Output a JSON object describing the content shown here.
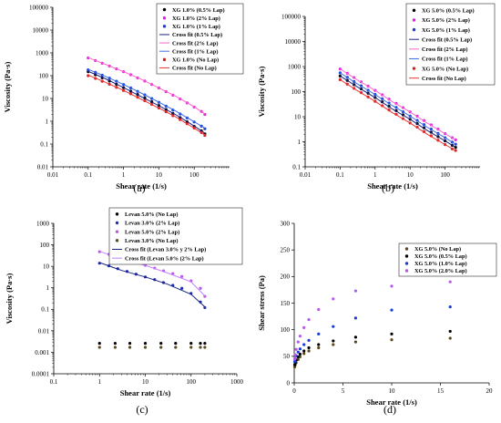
{
  "colors": {
    "black": "#000000",
    "magenta": "#e020e0",
    "blue": "#1a3cd6",
    "red": "#d42020",
    "navy": "#1a237e",
    "pink": "#ff66cc",
    "lightblue": "#3a6ee8",
    "salmon": "#ee3333",
    "darkblue": "#1f2fb0",
    "violet": "#b45ae6",
    "olive": "#5a4a1e",
    "yellowish": "#b8a23c"
  },
  "chart_data": [
    {
      "id": "a",
      "panel_label": "(a)",
      "type": "scatter",
      "scale": "log-log",
      "xlabel": "Shear rate (1/s)",
      "ylabel": "Viscosity (Pa·s)",
      "xlim": [
        0.01,
        1000
      ],
      "ylim": [
        0.01,
        100000
      ],
      "x_ticks": [
        "0.01",
        "0.1",
        "1",
        "10",
        "100"
      ],
      "y_ticks": [
        "0.01",
        "0.1",
        "1",
        "10",
        "100",
        "1000",
        "10000",
        "100000"
      ],
      "legend_position": "top-right",
      "series": [
        {
          "name": "XG 1.0% (0.5% Lap)",
          "kind": "points",
          "marker": "circle",
          "color": "#000000",
          "x": [
            0.1,
            0.16,
            0.25,
            0.4,
            0.63,
            1,
            1.6,
            2.5,
            4,
            6.3,
            10,
            16,
            25,
            40,
            63,
            100,
            160,
            200
          ],
          "y": [
            150,
            110,
            80,
            58,
            42,
            30,
            21,
            15,
            10.5,
            7.2,
            4.9,
            3.3,
            2.2,
            1.45,
            0.95,
            0.6,
            0.38,
            0.28
          ]
        },
        {
          "name": "XG 1.0% (2% Lap)",
          "kind": "points",
          "marker": "circle",
          "color": "#e020e0",
          "x": [
            0.1,
            0.16,
            0.25,
            0.4,
            0.63,
            1,
            1.6,
            2.5,
            4,
            6.3,
            10,
            16,
            25,
            40,
            63,
            100,
            160,
            200
          ],
          "y": [
            600,
            460,
            350,
            265,
            200,
            150,
            110,
            80,
            58,
            41,
            29,
            20,
            14,
            9.5,
            6.4,
            4.2,
            2.7,
            2.0
          ]
        },
        {
          "name": "XG 1.0% (1% Lap)",
          "kind": "points",
          "marker": "circle",
          "color": "#1a3cd6",
          "x": [
            0.1,
            0.16,
            0.25,
            0.4,
            0.63,
            1,
            1.6,
            2.5,
            4,
            6.3,
            10,
            16,
            25,
            40,
            63,
            100,
            160,
            200
          ],
          "y": [
            180,
            140,
            105,
            78,
            57,
            41,
            29,
            20.5,
            14.3,
            9.9,
            6.8,
            4.6,
            3.1,
            2.1,
            1.4,
            0.93,
            0.61,
            0.47
          ]
        },
        {
          "name": "Cross fit (0.5% Lap)",
          "kind": "line",
          "color": "#1a237e",
          "x": [
            0.1,
            0.3,
            1,
            3,
            10,
            30,
            100,
            200
          ],
          "y": [
            155,
            75,
            30,
            12.5,
            4.8,
            1.95,
            0.62,
            0.3
          ]
        },
        {
          "name": "Cross fit (2% Lap)",
          "kind": "line",
          "color": "#ff66cc",
          "x": [
            0.1,
            0.3,
            1,
            3,
            10,
            30,
            100,
            200
          ],
          "y": [
            620,
            320,
            150,
            72,
            29,
            12.5,
            4.3,
            2.1
          ]
        },
        {
          "name": "Cross fit (1% Lap)",
          "kind": "line",
          "color": "#3a6ee8",
          "x": [
            0.1,
            0.3,
            1,
            3,
            10,
            30,
            100,
            200
          ],
          "y": [
            190,
            95,
            41,
            18,
            6.9,
            2.8,
            0.95,
            0.5
          ]
        },
        {
          "name": "XG 1.0% (No Lap)",
          "kind": "points",
          "marker": "circle",
          "color": "#d42020",
          "x": [
            0.1,
            0.16,
            0.25,
            0.4,
            0.63,
            1,
            1.6,
            2.5,
            4,
            6.3,
            10,
            16,
            25,
            40,
            63,
            100,
            160,
            200
          ],
          "y": [
            100,
            76,
            57,
            42,
            31,
            22.5,
            16,
            11.3,
            7.9,
            5.5,
            3.8,
            2.6,
            1.75,
            1.18,
            0.78,
            0.5,
            0.32,
            0.24
          ]
        },
        {
          "name": "Cross fit (No Lap)",
          "kind": "line",
          "color": "#ee3333",
          "x": [
            0.1,
            0.3,
            1,
            3,
            10,
            30,
            100,
            200
          ],
          "y": [
            105,
            52,
            22.5,
            9.6,
            3.8,
            1.55,
            0.5,
            0.25
          ]
        }
      ]
    },
    {
      "id": "b",
      "panel_label": "(b)",
      "type": "scatter",
      "scale": "log-log",
      "xlabel": "Shear rate (1/s)",
      "ylabel": "Viscosity (Pa·s)",
      "xlim": [
        0.01,
        1000
      ],
      "ylim": [
        0.1,
        100000
      ],
      "x_ticks": [
        "0.01",
        "0.1",
        "1",
        "10",
        "100"
      ],
      "y_ticks": [
        "0.1",
        "1",
        "10",
        "100",
        "1000",
        "10000",
        "100000"
      ],
      "legend_position": "top-right",
      "series": [
        {
          "name": "XG 5.0% (0.5% Lap)",
          "kind": "points",
          "marker": "circle",
          "color": "#000000",
          "x": [
            0.1,
            0.16,
            0.25,
            0.4,
            0.63,
            1,
            1.6,
            2.5,
            4,
            6.3,
            10,
            16,
            25,
            40,
            63,
            100,
            160,
            200
          ],
          "y": [
            420,
            280,
            190,
            128,
            86,
            58,
            39,
            26,
            17.5,
            11.8,
            7.9,
            5.3,
            3.6,
            2.4,
            1.6,
            1.08,
            0.72,
            0.6
          ]
        },
        {
          "name": "XG 5.0% (2% Lap)",
          "kind": "points",
          "marker": "circle",
          "color": "#e020e0",
          "x": [
            0.1,
            0.16,
            0.25,
            0.4,
            0.63,
            1,
            1.6,
            2.5,
            4,
            6.3,
            10,
            16,
            25,
            40,
            63,
            100,
            160,
            200
          ],
          "y": [
            800,
            540,
            365,
            245,
            166,
            112,
            75,
            50,
            34,
            23,
            15.5,
            10.4,
            7,
            4.7,
            3.2,
            2.1,
            1.45,
            1.2
          ]
        },
        {
          "name": "XG 5.0% (1% Lap)",
          "kind": "points",
          "marker": "circle",
          "color": "#1a3cd6",
          "x": [
            0.1,
            0.16,
            0.25,
            0.4,
            0.63,
            1,
            1.6,
            2.5,
            4,
            6.3,
            10,
            16,
            25,
            40,
            63,
            100,
            160,
            200
          ],
          "y": [
            560,
            375,
            252,
            170,
            114,
            77,
            52,
            35,
            23.5,
            15.8,
            10.6,
            7.1,
            4.8,
            3.2,
            2.15,
            1.45,
            0.97,
            0.8
          ]
        },
        {
          "name": "Cross fit (0.5% Lap)",
          "kind": "line",
          "color": "#1a237e",
          "x": [
            0.1,
            0.3,
            1,
            3,
            10,
            30,
            100,
            200
          ],
          "y": [
            420,
            160,
            58,
            21,
            7.9,
            2.9,
            1.08,
            0.6
          ]
        },
        {
          "name": "Cross fit (2% Lap)",
          "kind": "line",
          "color": "#ff66cc",
          "x": [
            0.1,
            0.3,
            1,
            3,
            10,
            30,
            100,
            200
          ],
          "y": [
            800,
            300,
            112,
            41,
            15.5,
            5.7,
            2.1,
            1.2
          ]
        },
        {
          "name": "Cross fit (1% Lap)",
          "kind": "line",
          "color": "#3a6ee8",
          "x": [
            0.1,
            0.3,
            1,
            3,
            10,
            30,
            100,
            200
          ],
          "y": [
            560,
            210,
            77,
            28.5,
            10.6,
            3.9,
            1.45,
            0.8
          ]
        },
        {
          "name": "XG 5.0% (No Lap)",
          "kind": "points",
          "marker": "circle",
          "color": "#d42020",
          "x": [
            0.1,
            0.16,
            0.25,
            0.4,
            0.63,
            1,
            1.6,
            2.5,
            4,
            6.3,
            10,
            16,
            25,
            40,
            63,
            100,
            160,
            200
          ],
          "y": [
            300,
            200,
            135,
            91,
            61,
            41,
            27.5,
            18.5,
            12.5,
            8.4,
            5.6,
            3.8,
            2.55,
            1.72,
            1.15,
            0.77,
            0.52,
            0.45
          ]
        },
        {
          "name": "Cross fit (No Lap)",
          "kind": "line",
          "color": "#ee3333",
          "x": [
            0.1,
            0.3,
            1,
            3,
            10,
            30,
            100,
            200
          ],
          "y": [
            300,
            113,
            41,
            15,
            5.6,
            2.05,
            0.77,
            0.45
          ]
        }
      ]
    },
    {
      "id": "c",
      "panel_label": "(c)",
      "type": "scatter",
      "scale": "log-log",
      "xlabel": "Shear rate (1/s)",
      "ylabel": "Viscosity (Pa·s)",
      "xlim": [
        0.1,
        1000
      ],
      "ylim": [
        0.0001,
        1000
      ],
      "x_ticks": [
        "0.1",
        "1",
        "10",
        "100",
        "1000"
      ],
      "y_ticks": [
        "0.0001",
        "0.001",
        "0.01",
        "0.1",
        "1",
        "10",
        "100",
        "1000"
      ],
      "legend_position": "top-right",
      "series": [
        {
          "name": "Levan 5.0% (No Lap)",
          "kind": "points",
          "marker": "circle",
          "color": "#000000",
          "x": [
            1,
            2.2,
            4.6,
            10,
            22,
            46,
            100,
            160,
            200
          ],
          "y": [
            0.0026,
            0.0026,
            0.0026,
            0.0026,
            0.0026,
            0.0026,
            0.0026,
            0.0026,
            0.0026
          ]
        },
        {
          "name": "Levan 3.0% (2% Lap)",
          "kind": "points",
          "marker": "circle",
          "color": "#1f2fb0",
          "x": [
            1,
            1.6,
            2.5,
            4,
            6.3,
            10,
            16,
            25,
            40,
            63,
            100,
            160,
            200
          ],
          "y": [
            14,
            10.5,
            7.8,
            5.8,
            4.3,
            3.2,
            2.4,
            1.75,
            1.3,
            0.95,
            0.55,
            0.22,
            0.12
          ]
        },
        {
          "name": "Levan 5.0% (2% Lap)",
          "kind": "points",
          "marker": "circle",
          "color": "#b45ae6",
          "x": [
            1,
            1.6,
            2.5,
            4,
            6.3,
            10,
            16,
            25,
            40,
            63,
            100,
            160,
            200
          ],
          "y": [
            48,
            36,
            27,
            20,
            15,
            11.2,
            8.3,
            6.2,
            4.6,
            3.4,
            2.1,
            0.95,
            0.4
          ]
        },
        {
          "name": "Levan 3.0% (No Lap)",
          "kind": "points",
          "marker": "circle",
          "color": "#5a4a1e",
          "x": [
            1,
            2.2,
            4.6,
            10,
            22,
            46,
            100,
            160,
            200
          ],
          "y": [
            0.0017,
            0.0017,
            0.0017,
            0.0017,
            0.0017,
            0.0017,
            0.0017,
            0.0017,
            0.0017
          ]
        },
        {
          "name": "Cross fit (Levan 3.0% y 2% Lap)",
          "kind": "line",
          "color": "#1a237e",
          "x": [
            1,
            3,
            10,
            30,
            100,
            200
          ],
          "y": [
            15,
            6.5,
            3.2,
            1.5,
            0.5,
            0.13
          ]
        },
        {
          "name": "Cross fit (Levan 5.0% (2% Lap)",
          "kind": "line",
          "color": "#c080ff",
          "x": [
            1,
            3,
            10,
            30,
            100,
            200
          ],
          "y": [
            50,
            22,
            11,
            5,
            1.9,
            0.42
          ]
        }
      ]
    },
    {
      "id": "d",
      "panel_label": "(d)",
      "type": "scatter",
      "scale": "linear",
      "xlabel": "Shear rate (1/s)",
      "ylabel": "Shear stress (Pa)",
      "xlim": [
        0,
        20
      ],
      "ylim": [
        0,
        300
      ],
      "x_ticks": [
        "0",
        "5",
        "10",
        "15",
        "20"
      ],
      "y_ticks": [
        "0",
        "50",
        "100",
        "150",
        "200",
        "250",
        "300"
      ],
      "legend_position": "top-right",
      "series": [
        {
          "name": "XG 5.0% (No Lap)",
          "kind": "points",
          "marker": "circle",
          "color": "#5a4a1e",
          "x": [
            0.05,
            0.1,
            0.2,
            0.4,
            0.6,
            1.0,
            1.5,
            2.5,
            4,
            6.3,
            10,
            16
          ],
          "y": [
            30,
            34,
            38,
            44,
            49,
            55,
            60,
            66,
            72,
            77,
            81,
            84
          ]
        },
        {
          "name": "XG 5.0% (0.5% Lap)",
          "kind": "points",
          "marker": "circle",
          "color": "#000000",
          "x": [
            0.05,
            0.1,
            0.2,
            0.4,
            0.6,
            1.0,
            1.5,
            2.5,
            4,
            6.3,
            10,
            16
          ],
          "y": [
            34,
            38,
            43,
            49,
            54,
            60,
            66,
            72,
            79,
            86,
            92,
            97
          ]
        },
        {
          "name": "XG 5.0% (1.0% Lap)",
          "kind": "points",
          "marker": "circle",
          "color": "#1a3cd6",
          "x": [
            0.05,
            0.1,
            0.2,
            0.4,
            0.6,
            1.0,
            1.5,
            2.5,
            4,
            6.3,
            10,
            16
          ],
          "y": [
            40,
            45,
            51,
            58,
            64,
            72,
            80,
            92,
            106,
            122,
            137,
            143
          ]
        },
        {
          "name": "XG 5.0% (2.0% Lap)",
          "kind": "points",
          "marker": "circle",
          "color": "#b45ae6",
          "x": [
            0.05,
            0.1,
            0.2,
            0.4,
            0.6,
            1.0,
            1.5,
            2.5,
            4,
            6.3,
            10,
            16
          ],
          "y": [
            45,
            53,
            63,
            77,
            88,
            104,
            119,
            138,
            158,
            173,
            182,
            190
          ]
        }
      ]
    }
  ]
}
